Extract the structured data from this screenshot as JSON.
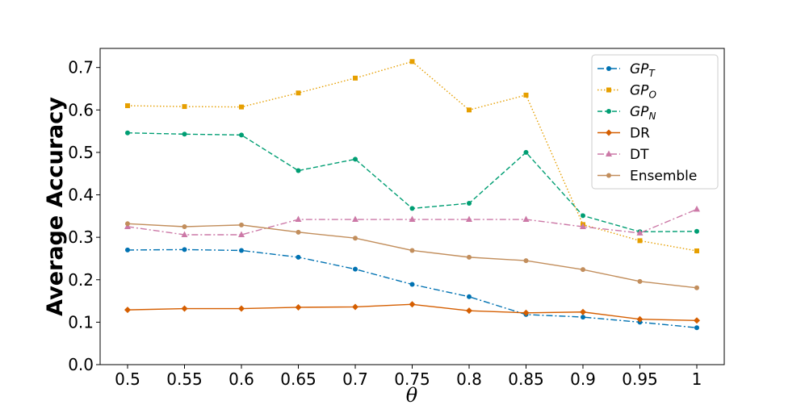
{
  "chart_data": {
    "type": "line",
    "xlabel": "θ",
    "ylabel": "Average Accuracy",
    "categories": [
      "0.5",
      "0.55",
      "0.6",
      "0.65",
      "0.7",
      "0.75",
      "0.8",
      "0.85",
      "0.9",
      "0.95",
      "1"
    ],
    "ylim": [
      0.0,
      0.745
    ],
    "yticks": [
      "0.0",
      "0.1",
      "0.2",
      "0.3",
      "0.4",
      "0.5",
      "0.6",
      "0.7"
    ],
    "grid": false,
    "legend_position": "top-right",
    "series": [
      {
        "name": "GP_T",
        "label_main": "GP",
        "label_sub": "T",
        "color": "#0072B2",
        "marker": "circle",
        "dash": "dashdot",
        "values": [
          0.27,
          0.271,
          0.269,
          0.253,
          0.225,
          0.189,
          0.16,
          0.118,
          0.112,
          0.1,
          0.087
        ]
      },
      {
        "name": "GP_O",
        "label_main": "GP",
        "label_sub": "O",
        "color": "#E69F00",
        "marker": "square",
        "dash": "dotted",
        "values": [
          0.61,
          0.608,
          0.607,
          0.64,
          0.675,
          0.714,
          0.6,
          0.635,
          0.33,
          0.292,
          0.268
        ]
      },
      {
        "name": "GP_N",
        "label_main": "GP",
        "label_sub": "N",
        "color": "#009E73",
        "marker": "circle",
        "dash": "dashed",
        "values": [
          0.546,
          0.543,
          0.541,
          0.457,
          0.484,
          0.368,
          0.38,
          0.5,
          0.351,
          0.313,
          0.314
        ]
      },
      {
        "name": "DR",
        "label_main": "DR",
        "label_sub": "",
        "color": "#D55E00",
        "marker": "diamond",
        "dash": "solid",
        "values": [
          0.129,
          0.132,
          0.132,
          0.135,
          0.136,
          0.142,
          0.127,
          0.122,
          0.124,
          0.107,
          0.104
        ]
      },
      {
        "name": "DT",
        "label_main": "DT",
        "label_sub": "",
        "color": "#CC79A7",
        "marker": "triangle",
        "dash": "dashdot",
        "values": [
          0.325,
          0.306,
          0.306,
          0.342,
          0.342,
          0.342,
          0.342,
          0.342,
          0.325,
          0.31,
          0.366
        ]
      },
      {
        "name": "Ensemble",
        "label_main": "Ensemble",
        "label_sub": "",
        "color": "#C28E5C",
        "marker": "circle",
        "dash": "solid",
        "values": [
          0.332,
          0.325,
          0.329,
          0.312,
          0.298,
          0.269,
          0.253,
          0.245,
          0.224,
          0.196,
          0.181
        ]
      }
    ]
  }
}
